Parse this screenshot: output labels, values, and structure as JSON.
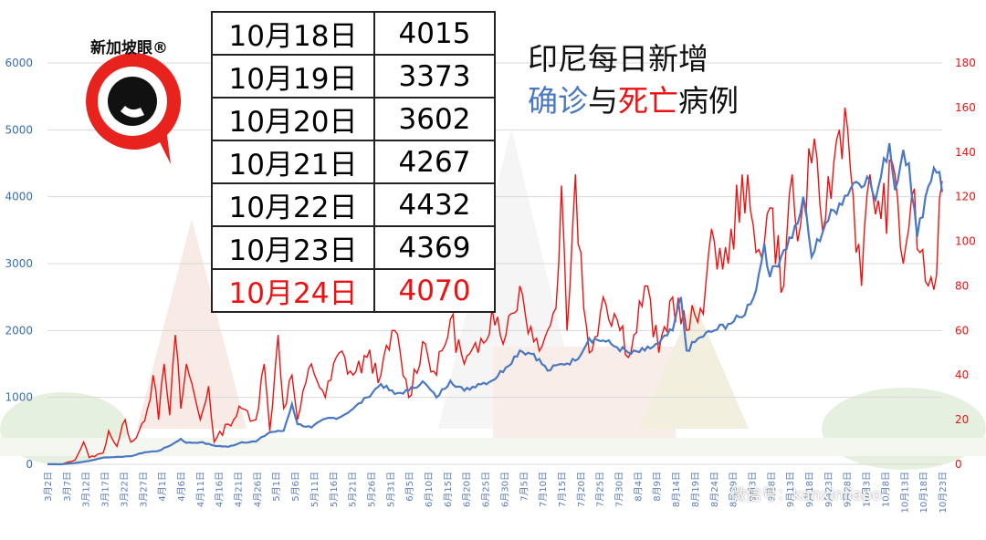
{
  "title": {
    "line1": "印尼每日新增",
    "blue": "确诊",
    "mid": "与",
    "red": "死亡",
    "tail": "病例"
  },
  "logo_text": "新加坡眼®",
  "watermark": "微信号：kanxinjiapo",
  "table": [
    {
      "date": "10月18日",
      "value": "4015",
      "highlight": false
    },
    {
      "date": "10月19日",
      "value": "3373",
      "highlight": false
    },
    {
      "date": "10月20日",
      "value": "3602",
      "highlight": false
    },
    {
      "date": "10月21日",
      "value": "4267",
      "highlight": false
    },
    {
      "date": "10月22日",
      "value": "4432",
      "highlight": false
    },
    {
      "date": "10月23日",
      "value": "4369",
      "highlight": false
    },
    {
      "date": "10月24日",
      "value": "4070",
      "highlight": true
    }
  ],
  "colors": {
    "confirmed": "#4a78c2",
    "deaths": "#ee1111",
    "left_axis": "#3a6fb5",
    "right_axis": "#ee1111",
    "grid": "#d8d8d8"
  },
  "chart_data": {
    "type": "line",
    "x_start": "3月2日",
    "x_end": "10月24日",
    "x_tick_labels": [
      "3月2日",
      "3月7日",
      "3月12日",
      "3月17日",
      "3月22日",
      "3月27日",
      "4月1日",
      "4月6日",
      "4月11日",
      "4月16日",
      "4月21日",
      "4月26日",
      "5月1日",
      "5月6日",
      "5月11日",
      "5月16日",
      "5月21日",
      "5月26日",
      "5月31日",
      "6月5日",
      "6月10日",
      "6月15日",
      "6月20日",
      "6月25日",
      "6月30日",
      "7月5日",
      "7月10日",
      "7月15日",
      "7月20日",
      "7月25日",
      "7月30日",
      "8月4日",
      "8月9日",
      "8月14日",
      "8月19日",
      "8月24日",
      "8月29日",
      "9月3日",
      "9月8日",
      "9月13日",
      "9月18日",
      "9月23日",
      "9月28日",
      "10月3日",
      "10月8日",
      "10月13日",
      "10月18日",
      "10月23日"
    ],
    "y_left": {
      "min": 0,
      "max": 6000,
      "step": 1000,
      "ticks": [
        "0",
        "1000",
        "2000",
        "3000",
        "4000",
        "5000",
        "6000"
      ]
    },
    "y_right": {
      "min": 0,
      "max": 180,
      "step": 20,
      "ticks": [
        "0",
        "20",
        "40",
        "60",
        "80",
        "100",
        "120",
        "140",
        "160",
        "180"
      ]
    },
    "grid": "horizontal",
    "series": [
      {
        "key": "confirmed",
        "axis": "left",
        "keypoints": [
          [
            0,
            2
          ],
          [
            5,
            0
          ],
          [
            10,
            20
          ],
          [
            15,
            50
          ],
          [
            20,
            100
          ],
          [
            25,
            110
          ],
          [
            30,
            120
          ],
          [
            35,
            180
          ],
          [
            40,
            200
          ],
          [
            45,
            300
          ],
          [
            48,
            380
          ],
          [
            50,
            320
          ],
          [
            55,
            330
          ],
          [
            60,
            280
          ],
          [
            65,
            260
          ],
          [
            70,
            330
          ],
          [
            75,
            340
          ],
          [
            80,
            480
          ],
          [
            85,
            500
          ],
          [
            88,
            900
          ],
          [
            90,
            600
          ],
          [
            95,
            550
          ],
          [
            100,
            680
          ],
          [
            105,
            700
          ],
          [
            110,
            830
          ],
          [
            115,
            1000
          ],
          [
            120,
            1200
          ],
          [
            125,
            1050
          ],
          [
            130,
            1100
          ],
          [
            135,
            1240
          ],
          [
            140,
            1000
          ],
          [
            145,
            1250
          ],
          [
            150,
            1100
          ],
          [
            155,
            1200
          ],
          [
            160,
            1250
          ],
          [
            165,
            1450
          ],
          [
            170,
            1700
          ],
          [
            175,
            1650
          ],
          [
            180,
            1400
          ],
          [
            185,
            1500
          ],
          [
            190,
            1550
          ],
          [
            195,
            1880
          ],
          [
            200,
            1850
          ],
          [
            205,
            1750
          ],
          [
            210,
            1650
          ],
          [
            215,
            1700
          ],
          [
            220,
            1800
          ],
          [
            225,
            2000
          ],
          [
            228,
            2500
          ],
          [
            230,
            1700
          ],
          [
            235,
            1900
          ],
          [
            240,
            2000
          ],
          [
            245,
            2100
          ],
          [
            250,
            2200
          ],
          [
            255,
            2600
          ],
          [
            258,
            3300
          ],
          [
            260,
            2800
          ],
          [
            265,
            3200
          ],
          [
            270,
            3600
          ],
          [
            272,
            4000
          ],
          [
            275,
            3100
          ],
          [
            280,
            3600
          ],
          [
            285,
            3900
          ],
          [
            290,
            4200
          ],
          [
            295,
            4300
          ],
          [
            298,
            3950
          ],
          [
            300,
            4300
          ],
          [
            303,
            4800
          ],
          [
            305,
            4100
          ],
          [
            308,
            4700
          ],
          [
            310,
            4500
          ],
          [
            313,
            3400
          ],
          [
            316,
            4000
          ],
          [
            319,
            4432
          ],
          [
            321,
            4369
          ],
          [
            322,
            4070
          ]
        ]
      },
      {
        "key": "deaths",
        "axis": "right",
        "keypoints": [
          [
            0,
            0
          ],
          [
            5,
            0
          ],
          [
            10,
            2
          ],
          [
            13,
            10
          ],
          [
            15,
            3
          ],
          [
            20,
            5
          ],
          [
            22,
            15
          ],
          [
            25,
            8
          ],
          [
            28,
            20
          ],
          [
            30,
            10
          ],
          [
            33,
            15
          ],
          [
            36,
            25
          ],
          [
            38,
            40
          ],
          [
            40,
            20
          ],
          [
            42,
            45
          ],
          [
            44,
            22
          ],
          [
            46,
            58
          ],
          [
            48,
            25
          ],
          [
            50,
            45
          ],
          [
            55,
            20
          ],
          [
            58,
            35
          ],
          [
            60,
            10
          ],
          [
            65,
            18
          ],
          [
            70,
            25
          ],
          [
            75,
            20
          ],
          [
            78,
            45
          ],
          [
            80,
            15
          ],
          [
            83,
            58
          ],
          [
            85,
            25
          ],
          [
            88,
            40
          ],
          [
            90,
            20
          ],
          [
            95,
            45
          ],
          [
            100,
            30
          ],
          [
            105,
            50
          ],
          [
            110,
            40
          ],
          [
            115,
            48
          ],
          [
            120,
            40
          ],
          [
            125,
            60
          ],
          [
            130,
            30
          ],
          [
            135,
            55
          ],
          [
            140,
            40
          ],
          [
            145,
            65
          ],
          [
            150,
            45
          ],
          [
            155,
            50
          ],
          [
            160,
            70
          ],
          [
            165,
            58
          ],
          [
            170,
            80
          ],
          [
            175,
            55
          ],
          [
            180,
            60
          ],
          [
            183,
            70
          ],
          [
            185,
            125
          ],
          [
            187,
            60
          ],
          [
            190,
            130
          ],
          [
            193,
            70
          ],
          [
            195,
            50
          ],
          [
            200,
            75
          ],
          [
            205,
            65
          ],
          [
            210,
            50
          ],
          [
            215,
            80
          ],
          [
            220,
            50
          ],
          [
            225,
            75
          ],
          [
            230,
            60
          ],
          [
            235,
            70
          ],
          [
            240,
            100
          ],
          [
            245,
            90
          ],
          [
            250,
            130
          ],
          [
            255,
            95
          ],
          [
            260,
            115
          ],
          [
            265,
            80
          ],
          [
            268,
            130
          ],
          [
            270,
            100
          ],
          [
            275,
            135
          ],
          [
            280,
            110
          ],
          [
            285,
            150
          ],
          [
            287,
            160
          ],
          [
            290,
            120
          ],
          [
            293,
            80
          ],
          [
            296,
            130
          ],
          [
            300,
            110
          ],
          [
            305,
            130
          ],
          [
            308,
            90
          ],
          [
            311,
            120
          ],
          [
            314,
            95
          ],
          [
            317,
            80
          ],
          [
            320,
            85
          ],
          [
            322,
            127
          ]
        ]
      }
    ]
  }
}
